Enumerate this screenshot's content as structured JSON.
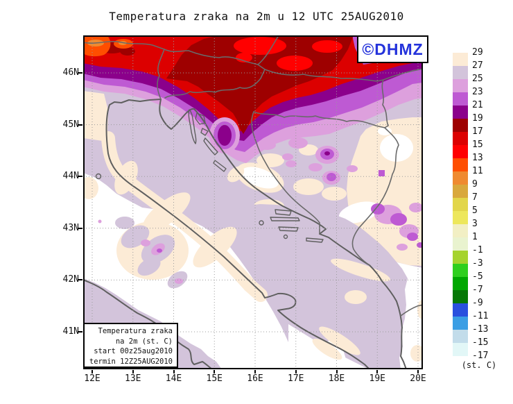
{
  "title": "Temperatura zraka na 2m u 12 UTC 25AUG2010",
  "logo": {
    "text": "©DHMZ",
    "color": "#2433DB"
  },
  "info_box": {
    "lines": [
      "Temperatura zraka",
      "na 2m (st. C)",
      "start 00z25aug2010",
      "termin 12Z25AUG2010"
    ]
  },
  "axes": {
    "lat_labels": [
      "46N",
      "45N",
      "44N",
      "43N",
      "42N",
      "41N"
    ],
    "lon_labels": [
      "12E",
      "13E",
      "14E",
      "15E",
      "16E",
      "17E",
      "18E",
      "19E",
      "20E"
    ]
  },
  "colorbar": {
    "unit": "(st. C)",
    "labels": [
      "29",
      "27",
      "25",
      "23",
      "21",
      "19",
      "17",
      "15",
      "13",
      "11",
      "9",
      "7",
      "5",
      "3",
      "1",
      "-1",
      "-3",
      "-5",
      "-7",
      "-9",
      "-11",
      "-13",
      "-15",
      "-17"
    ],
    "colors": [
      "#FCEBD6",
      "#D3C4DB",
      "#DDA0DD",
      "#BE5AD3",
      "#8B008B",
      "#9E0000",
      "#DC0000",
      "#FF0000",
      "#FF4E00",
      "#EF8A30",
      "#D9A83C",
      "#E2D64A",
      "#EDE75C",
      "#F2EFC4",
      "#E9F3CF",
      "#A5D32E",
      "#2FCF1E",
      "#00A800",
      "#067806",
      "#2A50DE",
      "#3B9EE4",
      "#C2DCEA",
      "#E2F7F7"
    ]
  }
}
